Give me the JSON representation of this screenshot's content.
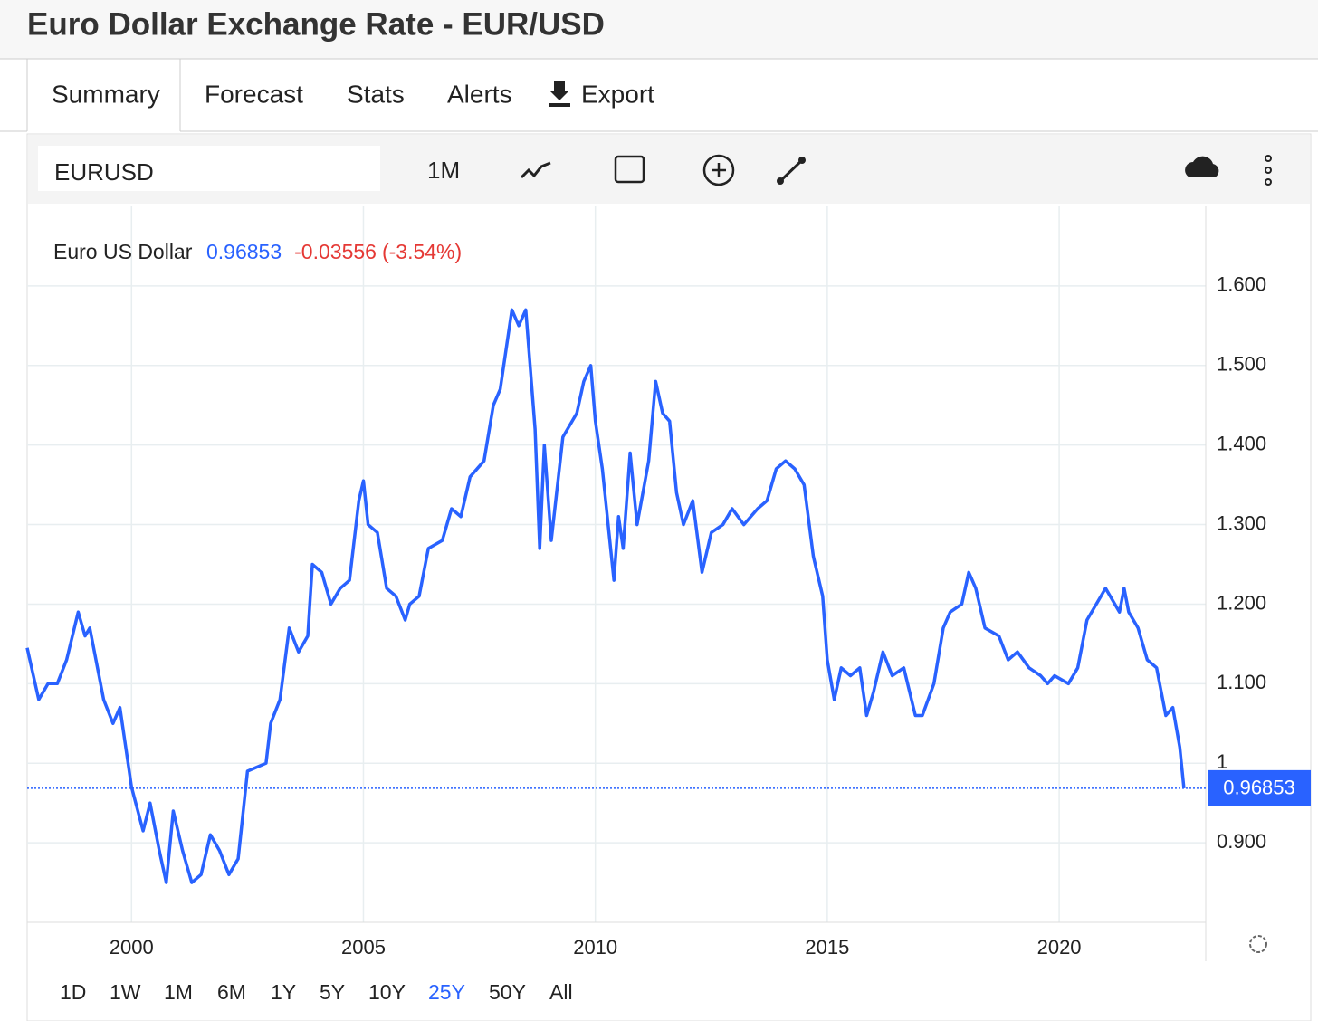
{
  "page": {
    "title": "Euro Dollar Exchange Rate - EUR/USD",
    "tabs": [
      "Summary",
      "Forecast",
      "Stats",
      "Alerts",
      "Export"
    ],
    "symbol": "EURUSD",
    "interval": "1M",
    "ranges": [
      "1D",
      "1W",
      "1M",
      "6M",
      "1Y",
      "5Y",
      "10Y",
      "25Y",
      "50Y",
      "All"
    ],
    "active_range": "25Y"
  },
  "chart_data": {
    "type": "line",
    "price": 0.96853,
    "change": -0.03556,
    "change_pct": "(-3.54%)",
    "xlim": [
      1997.75,
      2023.16
    ],
    "xticks": [
      2000,
      2005,
      2010,
      2015,
      2020
    ],
    "ylim": [
      0.8,
      1.7
    ],
    "yticks": [
      {
        "value": 0.9,
        "label": "0.900"
      },
      1,
      {
        "value": 1.1,
        "label": "1.100"
      },
      {
        "value": 1.2,
        "label": "1.200"
      },
      {
        "value": 1.3,
        "label": "1.300"
      },
      {
        "value": 1.4,
        "label": "1.400"
      },
      {
        "value": 1.5,
        "label": "1.500"
      },
      {
        "value": 1.6,
        "label": "1.600"
      }
    ],
    "grid": true,
    "x": [
      1997.75,
      1998.0,
      1998.2,
      1998.4,
      1998.6,
      1998.85,
      1999.0,
      1999.1,
      1999.4,
      1999.6,
      1999.75,
      1999.9,
      2000.0,
      2000.25,
      2000.4,
      2000.6,
      2000.75,
      2000.9,
      2001.1,
      2001.3,
      2001.5,
      2001.7,
      2001.9,
      2002.1,
      2002.3,
      2002.5,
      2002.9,
      2003.0,
      2003.2,
      2003.4,
      2003.6,
      2003.8,
      2003.9,
      2004.1,
      2004.3,
      2004.5,
      2004.7,
      2004.9,
      2005.0,
      2005.1,
      2005.3,
      2005.5,
      2005.7,
      2005.9,
      2006.0,
      2006.2,
      2006.4,
      2006.7,
      2006.9,
      2007.1,
      2007.3,
      2007.6,
      2007.8,
      2007.95,
      2008.2,
      2008.35,
      2008.5,
      2008.7,
      2008.8,
      2008.9,
      2009.05,
      2009.3,
      2009.6,
      2009.75,
      2009.9,
      2010.0,
      2010.15,
      2010.4,
      2010.5,
      2010.6,
      2010.75,
      2010.9,
      2011.15,
      2011.3,
      2011.45,
      2011.6,
      2011.75,
      2011.9,
      2012.1,
      2012.3,
      2012.5,
      2012.75,
      2012.95,
      2013.2,
      2013.5,
      2013.7,
      2013.9,
      2014.1,
      2014.3,
      2014.5,
      2014.7,
      2014.9,
      2015.0,
      2015.15,
      2015.3,
      2015.5,
      2015.7,
      2015.85,
      2016.0,
      2016.2,
      2016.4,
      2016.65,
      2016.9,
      2017.05,
      2017.3,
      2017.5,
      2017.65,
      2017.9,
      2018.05,
      2018.2,
      2018.4,
      2018.7,
      2018.9,
      2019.1,
      2019.35,
      2019.6,
      2019.75,
      2019.9,
      2020.2,
      2020.4,
      2020.6,
      2020.9,
      2021.0,
      2021.3,
      2021.4,
      2021.5,
      2021.7,
      2021.9,
      2022.1,
      2022.3,
      2022.45,
      2022.6,
      2022.69
    ],
    "series": [
      {
        "name": "Euro US Dollar",
        "color": "#2962ff",
        "values": [
          1.145,
          1.08,
          1.1,
          1.1,
          1.13,
          1.19,
          1.16,
          1.17,
          1.08,
          1.05,
          1.07,
          1.01,
          0.97,
          0.915,
          0.95,
          0.89,
          0.85,
          0.94,
          0.89,
          0.85,
          0.86,
          0.91,
          0.89,
          0.86,
          0.88,
          0.99,
          1.0,
          1.05,
          1.08,
          1.17,
          1.14,
          1.16,
          1.25,
          1.24,
          1.2,
          1.22,
          1.23,
          1.33,
          1.355,
          1.3,
          1.29,
          1.22,
          1.21,
          1.18,
          1.2,
          1.21,
          1.27,
          1.28,
          1.32,
          1.31,
          1.36,
          1.38,
          1.45,
          1.47,
          1.57,
          1.55,
          1.57,
          1.42,
          1.27,
          1.4,
          1.28,
          1.41,
          1.44,
          1.48,
          1.5,
          1.43,
          1.37,
          1.23,
          1.31,
          1.27,
          1.39,
          1.3,
          1.38,
          1.48,
          1.44,
          1.43,
          1.34,
          1.3,
          1.33,
          1.24,
          1.29,
          1.3,
          1.32,
          1.3,
          1.32,
          1.33,
          1.37,
          1.38,
          1.37,
          1.35,
          1.26,
          1.21,
          1.13,
          1.08,
          1.12,
          1.11,
          1.12,
          1.06,
          1.09,
          1.14,
          1.11,
          1.12,
          1.06,
          1.06,
          1.1,
          1.17,
          1.19,
          1.2,
          1.24,
          1.22,
          1.17,
          1.16,
          1.13,
          1.14,
          1.12,
          1.11,
          1.1,
          1.11,
          1.1,
          1.12,
          1.18,
          1.21,
          1.22,
          1.19,
          1.22,
          1.19,
          1.17,
          1.13,
          1.12,
          1.06,
          1.07,
          1.02,
          0.96853
        ]
      }
    ]
  }
}
